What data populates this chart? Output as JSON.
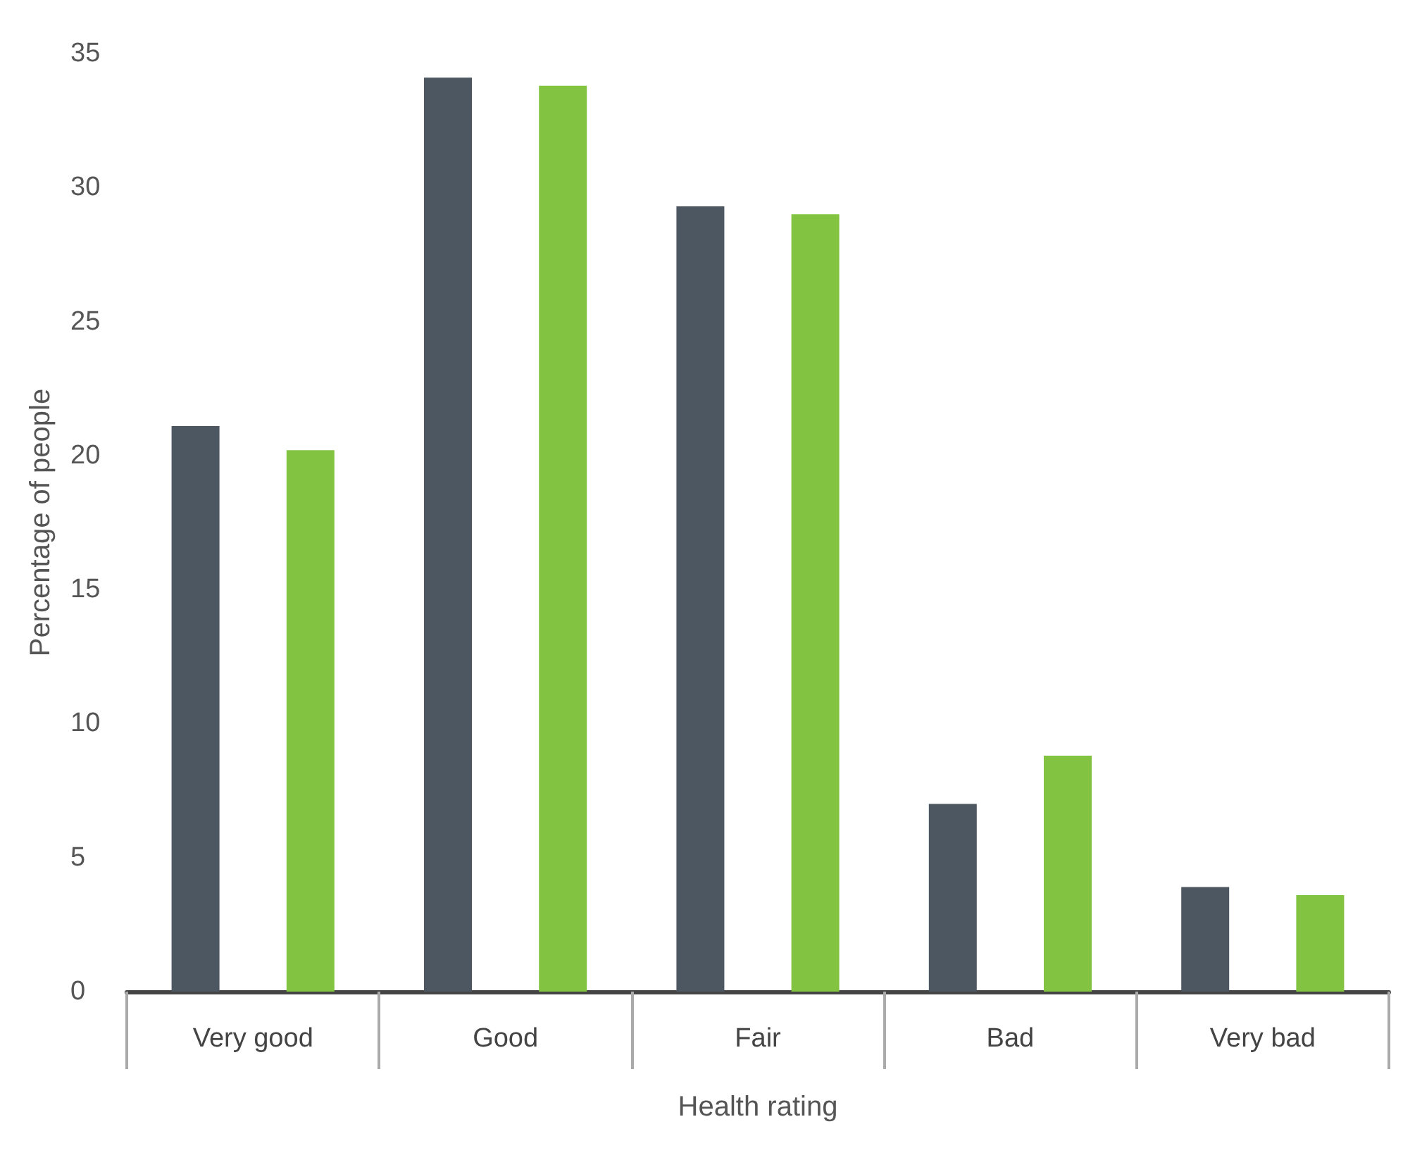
{
  "chart_data": {
    "type": "bar",
    "xlabel": "Health rating",
    "ylabel": "Percentage of people",
    "categories": [
      "Very good",
      "Good",
      "Fair",
      "Bad",
      "Very bad"
    ],
    "series": [
      {
        "color": "#4d5761",
        "values": [
          21.1,
          34.1,
          29.3,
          7.0,
          3.9
        ]
      },
      {
        "color": "#82c341",
        "values": [
          20.2,
          33.8,
          29.0,
          8.8,
          3.6
        ]
      }
    ],
    "ylim": [
      0,
      35
    ],
    "yticks": [
      0,
      5,
      10,
      15,
      20,
      25,
      30,
      35
    ],
    "grid": false
  }
}
